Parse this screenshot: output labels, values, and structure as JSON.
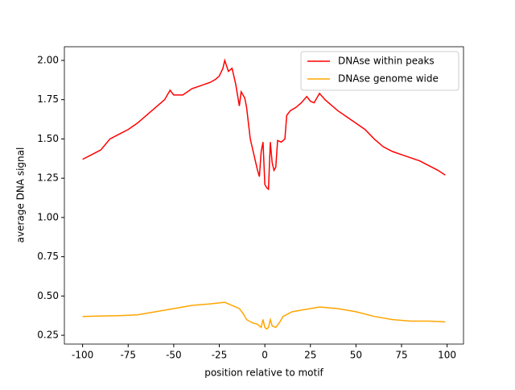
{
  "chart_data": {
    "type": "line",
    "xlabel": "position relative to motif",
    "ylabel": "average DNA signal",
    "xlim": [
      -110,
      109
    ],
    "ylim": [
      0.194,
      2.087
    ],
    "xticks": [
      -100,
      -75,
      -50,
      -25,
      0,
      25,
      50,
      75,
      100
    ],
    "yticks": [
      0.25,
      {
        "value": 0.5,
        "label": "0.50"
      },
      0.75,
      {
        "value": 1.0,
        "label": "1.00"
      },
      1.25,
      {
        "value": 1.5,
        "label": "1.50"
      },
      1.75,
      {
        "value": 2.0,
        "label": "2.00"
      }
    ],
    "legend": "upper right",
    "series": [
      {
        "name": "DNAse within peaks",
        "color": "#ff0000",
        "x": [
          -100,
          -95,
          -90,
          -85,
          -80,
          -75,
          -70,
          -65,
          -60,
          -55,
          -52,
          -50,
          -45,
          -40,
          -35,
          -30,
          -27,
          -25,
          -23,
          -22,
          -20,
          -18,
          -16,
          -15,
          -14,
          -13,
          -11,
          -10,
          -8,
          -6,
          -4,
          -3,
          -2,
          -1,
          0,
          1,
          2,
          3,
          4,
          5,
          6,
          7,
          9,
          11,
          12,
          14,
          17,
          20,
          23,
          25,
          27,
          30,
          33,
          36,
          40,
          45,
          50,
          55,
          60,
          65,
          70,
          75,
          80,
          85,
          90,
          95,
          99
        ],
        "values": [
          1.37,
          1.4,
          1.43,
          1.5,
          1.53,
          1.56,
          1.6,
          1.65,
          1.7,
          1.75,
          1.81,
          1.78,
          1.78,
          1.82,
          1.84,
          1.86,
          1.88,
          1.9,
          1.95,
          2.0,
          1.93,
          1.95,
          1.85,
          1.78,
          1.71,
          1.8,
          1.76,
          1.7,
          1.5,
          1.4,
          1.3,
          1.26,
          1.42,
          1.48,
          1.21,
          1.19,
          1.18,
          1.48,
          1.35,
          1.3,
          1.32,
          1.49,
          1.48,
          1.5,
          1.65,
          1.68,
          1.7,
          1.73,
          1.77,
          1.74,
          1.73,
          1.79,
          1.75,
          1.72,
          1.68,
          1.64,
          1.6,
          1.56,
          1.5,
          1.45,
          1.42,
          1.4,
          1.38,
          1.36,
          1.33,
          1.3,
          1.27
        ]
      },
      {
        "name": "DNAse genome wide",
        "color": "#ffa500",
        "x": [
          -100,
          -80,
          -70,
          -60,
          -50,
          -40,
          -30,
          -22,
          -18,
          -14,
          -12,
          -10,
          -7,
          -4,
          -2,
          -1,
          0,
          1,
          2,
          3,
          4,
          6,
          8,
          10,
          15,
          20,
          30,
          40,
          50,
          60,
          70,
          80,
          90,
          99
        ],
        "values": [
          0.37,
          0.375,
          0.38,
          0.4,
          0.42,
          0.44,
          0.45,
          0.46,
          0.44,
          0.42,
          0.39,
          0.35,
          0.33,
          0.32,
          0.3,
          0.35,
          0.3,
          0.29,
          0.3,
          0.35,
          0.31,
          0.3,
          0.33,
          0.37,
          0.4,
          0.41,
          0.43,
          0.42,
          0.4,
          0.37,
          0.35,
          0.34,
          0.34,
          0.335
        ]
      }
    ]
  }
}
